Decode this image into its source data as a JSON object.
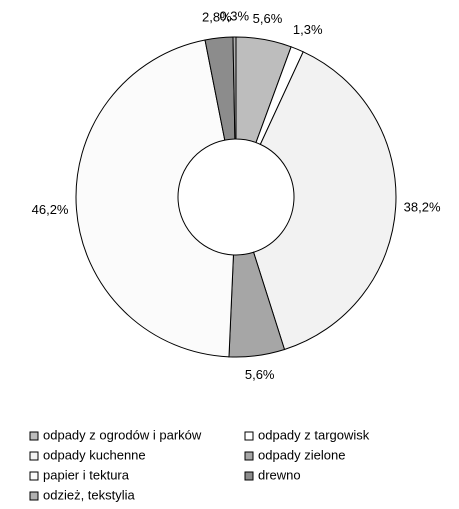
{
  "chart_data": {
    "type": "donut",
    "categories": [
      "odpady z ogrodów i parków",
      "odpady z targowisk",
      "odpady kuchenne",
      "odpady zielone",
      "papier i tektura",
      "drewno",
      "odzież, tekstylia"
    ],
    "values": [
      5.6,
      1.3,
      38.2,
      5.6,
      46.2,
      2.8,
      0.3
    ],
    "value_labels": [
      "5,6%",
      "1,3%",
      "38,2%",
      "5,6%",
      "46,2%",
      "2,8%",
      "0,3%"
    ],
    "colors": [
      "#bdbdbd",
      "#ffffff",
      "#f2f2f2",
      "#a6a6a6",
      "#fbfbfb",
      "#8c8c8c",
      "#b0b0b0"
    ],
    "legend": "bottom"
  }
}
